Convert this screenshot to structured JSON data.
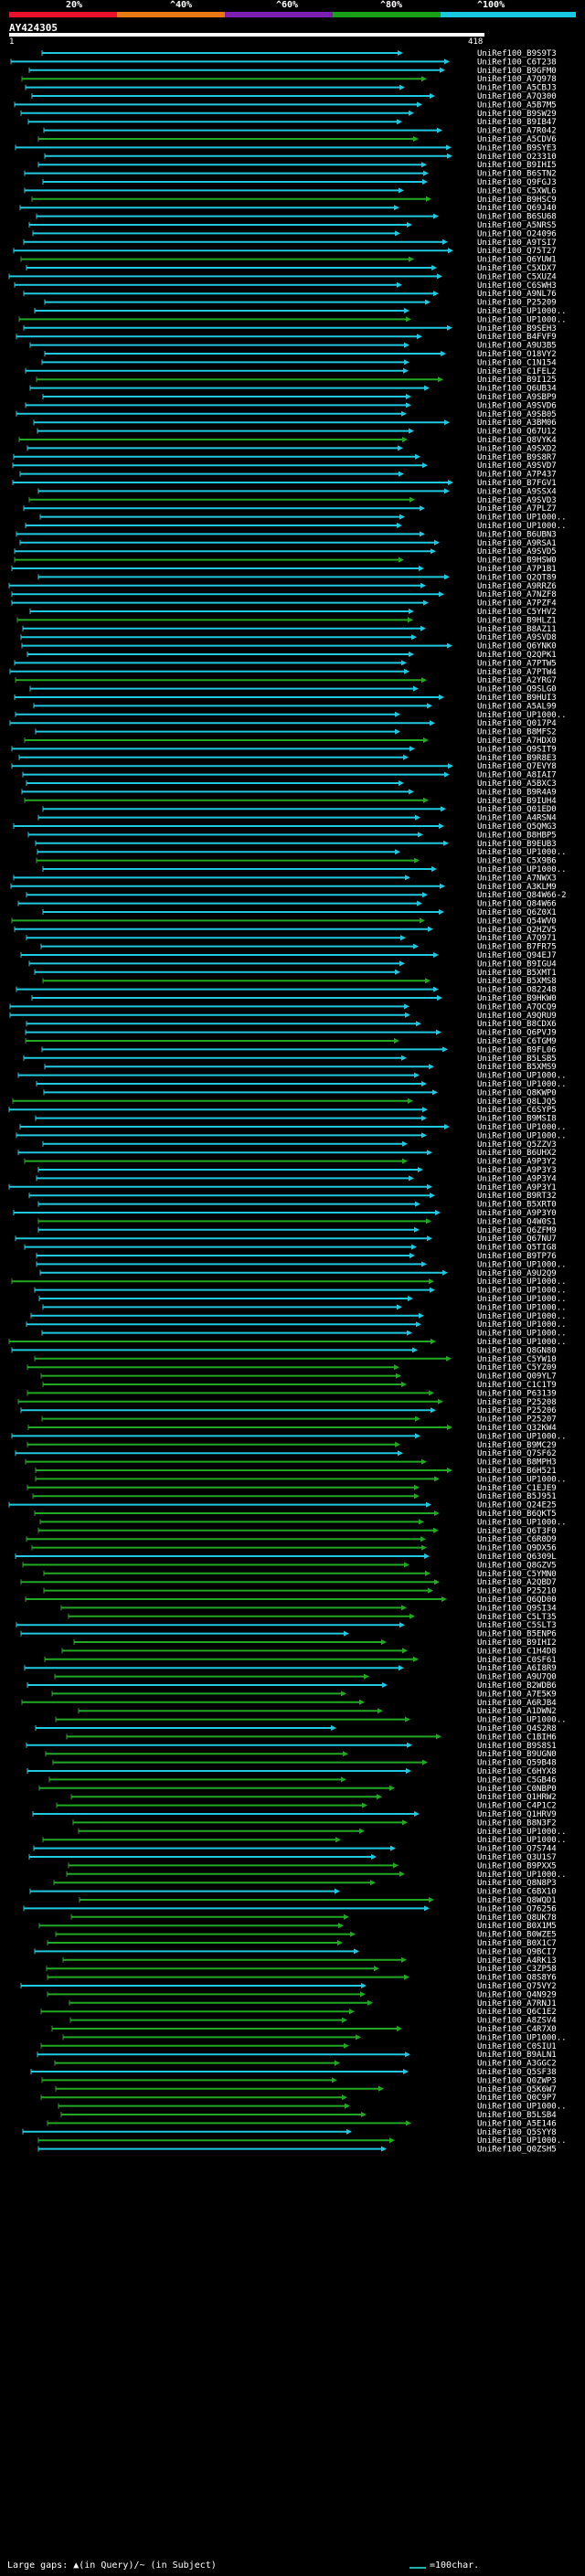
{
  "legend": {
    "labels": [
      "20%",
      "^40%",
      "^60%",
      "^80%",
      "^100%"
    ],
    "colors": [
      "#e8102a",
      "#e87812",
      "#7a1fb0",
      "#18a018",
      "#18c8e0"
    ]
  },
  "query": {
    "name": "AY424305",
    "start": "1",
    "end": "418"
  },
  "footer": {
    "gaps": "Large gaps: ▲(in Query)/~ (in Subject)",
    "scale": "=100char."
  },
  "hits": [
    "UniRef100_B9S9T3",
    "UniRef100_C6T238",
    "UniRef100_B9GFM0",
    "UniRef100_A7Q978",
    "UniRef100_A5CBJ3",
    "UniRef100_A7Q300",
    "UniRef100_A5B7M5",
    "UniRef100_B9SW29",
    "UniRef100_B9IB47",
    "UniRef100_A7R042",
    "UniRef100_A5CDV6",
    "UniRef100_B9SYE3",
    "UniRef100_O23310",
    "UniRef100_B9IHI5",
    "UniRef100_B6STN2",
    "UniRef100_Q9FGJ3",
    "UniRef100_C5XWL6",
    "UniRef100_B9HSC9",
    "UniRef100_Q69J40",
    "UniRef100_B6SU68",
    "UniRef100_A5NRS5",
    "UniRef100_O24096",
    "UniRef100_A9TSI7",
    "UniRef100_Q75T27",
    "UniRef100_Q6YUW1",
    "UniRef100_C5XDX7",
    "UniRef100_C5XUZ4",
    "UniRef100_C6SWH3",
    "UniRef100_A9NL76",
    "UniRef100_P25209",
    "UniRef100_UP1000..",
    "UniRef100_UP1000..",
    "UniRef100_B9SEH3",
    "UniRef100_B4FVF9",
    "UniRef100_A9U3B5",
    "UniRef100_O18VY2",
    "UniRef100_C1N154",
    "UniRef100_C1FEL2",
    "UniRef100_B9I125",
    "UniRef100_Q6UB34",
    "UniRef100_A9SBP9",
    "UniRef100_A9SVD6",
    "UniRef100_A9SB05",
    "UniRef100_A3BM06",
    "UniRef100_Q67U12",
    "UniRef100_Q8VYK4",
    "UniRef100_A9SXD2",
    "UniRef100_B9S8R7",
    "UniRef100_A9SVD7",
    "UniRef100_A7P437",
    "UniRef100_B7FGV1",
    "UniRef100_A9SSX4",
    "UniRef100_A9SVD3",
    "UniRef100_A7PLZ7",
    "UniRef100_UP1000..",
    "UniRef100_UP1000..",
    "UniRef100_B6UBN3",
    "UniRef100_A9RSA1",
    "UniRef100_A9SVD5",
    "UniRef100_B9HSW0",
    "UniRef100_A7P1B1",
    "UniRef100_Q2QT89",
    "UniRef100_A9RRZ6",
    "UniRef100_A7NZF8",
    "UniRef100_A7PZF4",
    "UniRef100_C5YHV2",
    "UniRef100_B9HLZ1",
    "UniRef100_B8AZ11",
    "UniRef100_A9SVD8",
    "UniRef100_Q6YNK0",
    "UniRef100_Q2QPK1",
    "UniRef100_A7PTW5",
    "UniRef100_A7PTW4",
    "UniRef100_A2YRG7",
    "UniRef100_Q9SLG0",
    "UniRef100_B9HUI3",
    "UniRef100_A5AL99",
    "UniRef100_UP1000..",
    "UniRef100_Q017P4",
    "UniRef100_B8MFS2",
    "UniRef100_A7HDX0",
    "UniRef100_Q9SIT9",
    "UniRef100_B9R8E3",
    "UniRef100_Q7EVY8",
    "UniRef100_A8IAI7",
    "UniRef100_A5BXC3",
    "UniRef100_B9R4A9",
    "UniRef100_B9IUH4",
    "UniRef100_Q01ED0",
    "UniRef100_A4RSN4",
    "UniRef100_Q5QMG3",
    "UniRef100_B8HBP5",
    "UniRef100_B9EUB3",
    "UniRef100_UP1000..",
    "UniRef100_C5X9B6",
    "UniRef100_UP1000..",
    "UniRef100_A7NWX3",
    "UniRef100_A3KLM9",
    "UniRef100_Q84W66-2",
    "UniRef100_Q84W66",
    "UniRef100_Q6Z0X1",
    "UniRef100_Q54WV0",
    "UniRef100_Q2HZV5",
    "UniRef100_A7Q971",
    "UniRef100_B7FR75",
    "UniRef100_Q94EJ7",
    "UniRef100_B9IGU4",
    "UniRef100_B5XMT1",
    "UniRef100_B5XMS8",
    "UniRef100_O82248",
    "UniRef100_B9HKW0",
    "UniRef100_A7QCQ9",
    "UniRef100_A9QRU9",
    "UniRef100_B8CDX6",
    "UniRef100_Q6PVJ9",
    "UniRef100_C6TGM9",
    "UniRef100_B9FL06",
    "UniRef100_B5LSB5",
    "UniRef100_B5XMS9",
    "UniRef100_UP1000..",
    "UniRef100_UP1000..",
    "UniRef100_Q8KWP0",
    "UniRef100_Q8LJQ5",
    "UniRef100_C6SYP5",
    "UniRef100_B9MSI8",
    "UniRef100_UP1000..",
    "UniRef100_UP1000..",
    "UniRef100_Q5ZZV3",
    "UniRef100_B6UHX2",
    "UniRef100_A9P3Y2",
    "UniRef100_A9P3Y3",
    "UniRef100_A9P3Y4",
    "UniRef100_A9P3Y1",
    "UniRef100_B9RT32",
    "UniRef100_B5XRT0",
    "UniRef100_A9P3Y0",
    "UniRef100_Q4W0S1",
    "UniRef100_Q6ZFM9",
    "UniRef100_Q67NU7",
    "UniRef100_Q5TIG8",
    "UniRef100_B9TP76",
    "UniRef100_UP1000..",
    "UniRef100_A9U2Q9",
    "UniRef100_UP1000..",
    "UniRef100_UP1000..",
    "UniRef100_UP1000..",
    "UniRef100_UP1000..",
    "UniRef100_UP1000..",
    "UniRef100_UP1000..",
    "UniRef100_UP1000..",
    "UniRef100_UP1000..",
    "UniRef100_Q8GN80",
    "UniRef100_C5YW10",
    "UniRef100_C5YZ09",
    "UniRef100_Q09YL7",
    "UniRef100_C1C1T9",
    "UniRef100_P63139",
    "UniRef100_P25208",
    "UniRef100_P25206",
    "UniRef100_P25207",
    "UniRef100_Q32KW4",
    "UniRef100_UP1000..",
    "UniRef100_B9MC29",
    "UniRef100_Q7SF62",
    "UniRef100_B8MPH3",
    "UniRef100_B6H521",
    "UniRef100_UP1000..",
    "UniRef100_C1EJE9",
    "UniRef100_B5J951",
    "UniRef100_Q24E25",
    "UniRef100_B6QKT5",
    "UniRef100_UP1000..",
    "UniRef100_Q6T3F0",
    "UniRef100_C6R0D9",
    "UniRef100_Q9DX56",
    "UniRef100_Q6309L",
    "UniRef100_Q8GZV5",
    "UniRef100_C5YMN0",
    "UniRef100_A2QBD7",
    "UniRef100_P25210",
    "UniRef100_Q6QD00",
    "UniRef100_Q9SI34",
    "UniRef100_C5LT35",
    "UniRef100_C5SLT3",
    "UniRef100_B5ENP6",
    "UniRef100_B9IHI2",
    "UniRef100_C1H4D8",
    "UniRef100_C0SF61",
    "UniRef100_A6I8R9",
    "UniRef100_A9U7Q0",
    "UniRef100_B2WDB6",
    "UniRef100_A7E5K9",
    "UniRef100_A6RJB4",
    "UniRef100_A1DWN2",
    "UniRef100_UP1000..",
    "UniRef100_Q4S2R8",
    "UniRef100_C1BIH6",
    "UniRef100_B9S8S1",
    "UniRef100_B9UGN0",
    "UniRef100_Q59B48",
    "UniRef100_C6HYX8",
    "UniRef100_C5GB46",
    "UniRef100_C0NBP0",
    "UniRef100_Q1HRW2",
    "UniRef100_C4P1C2",
    "UniRef100_Q1HRV9",
    "UniRef100_B8N3F2",
    "UniRef100_UP1000..",
    "UniRef100_UP1000..",
    "UniRef100_Q7S744",
    "UniRef100_Q3U1S7",
    "UniRef100_B9PXX5",
    "UniRef100_UP1000..",
    "UniRef100_Q8N8P3",
    "UniRef100_C6BX10",
    "UniRef100_Q8WQD1",
    "UniRef100_Q76256",
    "UniRef100_Q8UK78",
    "UniRef100_B0X1M5",
    "UniRef100_B0WZE5",
    "UniRef100_B0X1C7",
    "UniRef100_Q9BCI7",
    "UniRef100_A4RK13",
    "UniRef100_C3ZP58",
    "UniRef100_Q8S8Y6",
    "UniRef100_Q75VY2",
    "UniRef100_Q4N929",
    "UniRef100_A7RNJ1",
    "UniRef100_Q6C1E2",
    "UniRef100_A8ZSV4",
    "UniRef100_C4R7X0",
    "UniRef100_UP1000..",
    "UniRef100_C0SIU1",
    "UniRef100_B9ALN1",
    "UniRef100_A3GGC2",
    "UniRef100_Q5SF38",
    "UniRef100_Q0ZWP3",
    "UniRef100_Q5K6W7",
    "UniRef100_Q0C9P7",
    "UniRef100_UP1000..",
    "UniRef100_B5LSB4",
    "UniRef100_A5E146",
    "UniRef100_Q5SYY8",
    "UniRef100_UP1000..",
    "UniRef100_Q0ZSH5"
  ]
}
